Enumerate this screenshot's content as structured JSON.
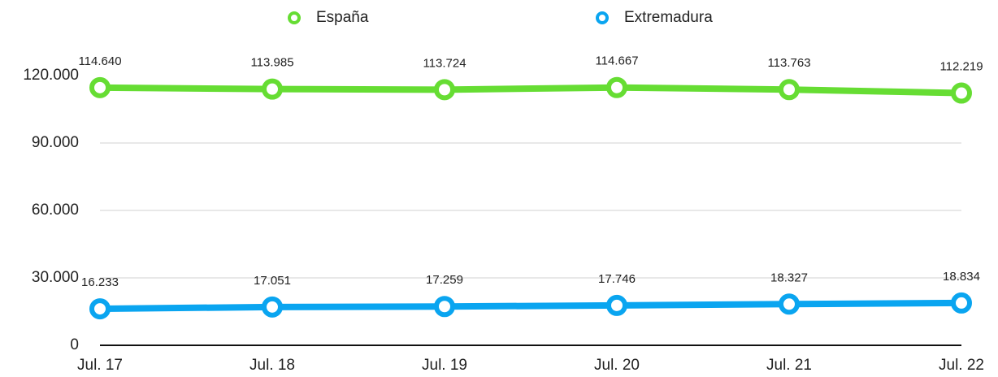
{
  "chart_data": {
    "type": "line",
    "categories": [
      "Jul. 17",
      "Jul. 18",
      "Jul. 19",
      "Jul. 20",
      "Jul. 21",
      "Jul. 22"
    ],
    "series": [
      {
        "name": "España",
        "color": "#66dd33",
        "values": [
          114640,
          113985,
          113724,
          114667,
          113763,
          112219
        ],
        "value_labels": [
          "114.640",
          "113.985",
          "113.724",
          "114.667",
          "113.763",
          "112.219"
        ]
      },
      {
        "name": "Extremadura",
        "color": "#0aa5f0",
        "values": [
          16233,
          17051,
          17259,
          17746,
          18327,
          18834
        ],
        "value_labels": [
          "16.233",
          "17.051",
          "17.259",
          "17.746",
          "18.327",
          "18.834"
        ]
      }
    ],
    "ylim": [
      0,
      120000
    ],
    "yticks": [
      0,
      {
        "value": 30000,
        "label": "30.000"
      },
      {
        "value": 60000,
        "label": "60.000"
      },
      {
        "value": 90000,
        "label": "90.000"
      },
      {
        "value": 120000,
        "label": "120.000"
      }
    ],
    "grid": true,
    "legend": "top"
  }
}
